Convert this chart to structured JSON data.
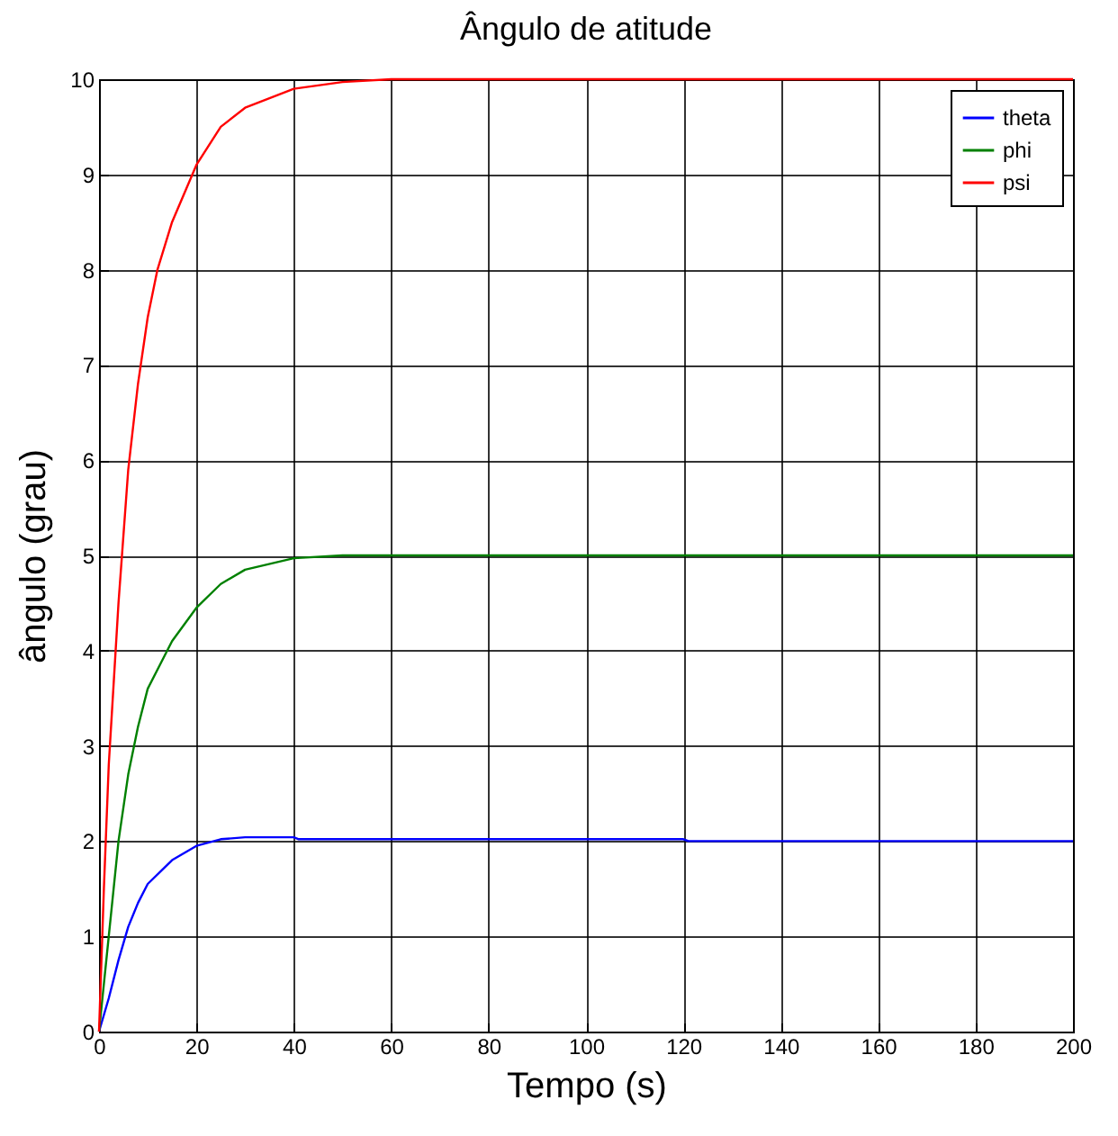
{
  "chart_data": {
    "type": "line",
    "title": "Ângulo de atitude",
    "xlabel": "Tempo  (s)",
    "ylabel": "ângulo  (grau)",
    "xlim": [
      0,
      200
    ],
    "xticks": [
      0,
      20,
      40,
      60,
      80,
      100,
      120,
      140,
      160,
      180,
      200
    ],
    "ylim": [
      0,
      10
    ],
    "yticks": [
      0,
      1,
      2,
      3,
      4,
      5,
      6,
      7,
      8,
      9,
      10
    ],
    "grid": true,
    "legend": "top right",
    "series": [
      {
        "name": "theta",
        "color": "#0000ff",
        "x": [
          0,
          2,
          4,
          6,
          8,
          10,
          15,
          20,
          25,
          30,
          40,
          41,
          120,
          121,
          200
        ],
        "values": [
          0,
          0.35,
          0.75,
          1.1,
          1.35,
          1.55,
          1.8,
          1.95,
          2.02,
          2.04,
          2.04,
          2.02,
          2.02,
          2.0,
          2.0
        ]
      },
      {
        "name": "phi",
        "color": "#008000",
        "x": [
          0,
          2,
          4,
          6,
          8,
          10,
          15,
          20,
          25,
          30,
          40,
          50,
          200
        ],
        "values": [
          0,
          1.0,
          2.0,
          2.7,
          3.2,
          3.6,
          4.1,
          4.45,
          4.7,
          4.85,
          4.97,
          5,
          5
        ]
      },
      {
        "name": "psi",
        "color": "#ff0000",
        "x": [
          0,
          1,
          2,
          4,
          6,
          8,
          10,
          12,
          15,
          20,
          25,
          30,
          40,
          50,
          60,
          200
        ],
        "values": [
          0,
          1.5,
          2.8,
          4.5,
          5.9,
          6.8,
          7.5,
          8.0,
          8.5,
          9.1,
          9.5,
          9.7,
          9.9,
          9.97,
          10,
          10
        ]
      }
    ]
  }
}
